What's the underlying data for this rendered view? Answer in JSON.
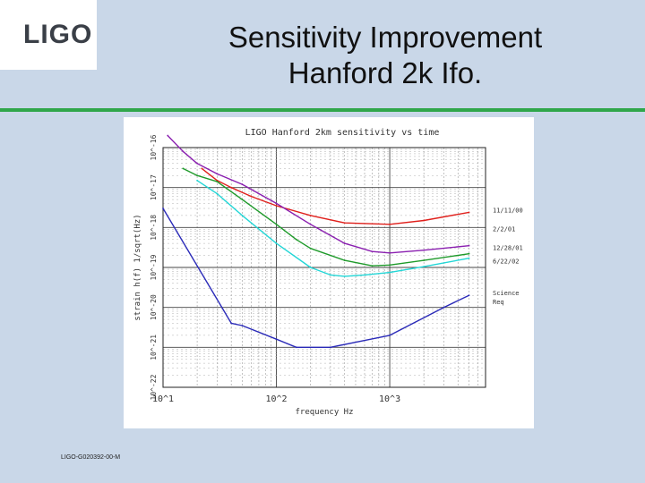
{
  "logo": {
    "text": "LIGO"
  },
  "title": {
    "line1": "Sensitivity Improvement",
    "line2": "Hanford 2k Ifo."
  },
  "footer": {
    "doc_id": "LIGO-G020392-00-M"
  },
  "colors": {
    "background": "#c9d7e8",
    "rule": "#2fa64a",
    "red": "#e0201c",
    "purple": "#8a1fb0",
    "green": "#1e9a2a",
    "cyan": "#22d6d6",
    "blue": "#2a2ab8"
  },
  "chart_data": {
    "type": "line",
    "title": "LIGO Hanford 2km sensitivity vs time",
    "xlabel": "frequency Hz",
    "ylabel": "strain h(f) 1/sqrt(Hz)",
    "xscale": "log",
    "yscale": "log",
    "xlim": [
      10,
      7000
    ],
    "ylim": [
      1e-22,
      1e-16
    ],
    "x_ticks": [
      "10^1",
      "10^2",
      "10^3"
    ],
    "y_ticks": [
      "10^-16",
      "10^-17",
      "10^-18",
      "10^-19",
      "10^-20",
      "10^-21",
      "10^-22"
    ],
    "grid": true,
    "series": [
      {
        "name": "11/11/00",
        "color": "#e0201c",
        "x": [
          22,
          30,
          40,
          60,
          100,
          200,
          400,
          1000,
          2000,
          5000
        ],
        "y": [
          3e-17,
          1.5e-17,
          1e-17,
          6e-18,
          3.5e-18,
          2e-18,
          1.3e-18,
          1.2e-18,
          1.5e-18,
          2.4e-18
        ]
      },
      {
        "name": "2/2/01",
        "color": "#8a1fb0",
        "x": [
          11,
          15,
          20,
          30,
          50,
          100,
          200,
          400,
          700,
          1000,
          2000,
          5000
        ],
        "y": [
          2e-16,
          8e-17,
          4e-17,
          2.2e-17,
          1.2e-17,
          4e-18,
          1.2e-18,
          4e-19,
          2.5e-19,
          2.3e-19,
          2.7e-19,
          3.5e-19
        ]
      },
      {
        "name": "12/28/01",
        "color": "#1e9a2a",
        "x": [
          15,
          20,
          30,
          50,
          100,
          150,
          200,
          400,
          700,
          1000,
          2000,
          5000
        ],
        "y": [
          3e-17,
          2e-17,
          1.4e-17,
          5e-18,
          1.2e-18,
          5e-19,
          3e-19,
          1.5e-19,
          1.1e-19,
          1.15e-19,
          1.5e-19,
          2.2e-19
        ]
      },
      {
        "name": "6/22/02",
        "color": "#22d6d6",
        "x": [
          20,
          30,
          50,
          100,
          200,
          300,
          400,
          600,
          1000,
          2000,
          5000
        ],
        "y": [
          1.5e-17,
          7e-18,
          2e-18,
          4e-19,
          1e-19,
          6.5e-20,
          6e-20,
          6.5e-20,
          7.5e-20,
          1.05e-19,
          1.7e-19
        ]
      },
      {
        "name": "Science Req",
        "color": "#2a2ab8",
        "x": [
          10,
          40,
          50,
          100,
          150,
          300,
          1000,
          3000,
          5000
        ],
        "y": [
          3e-18,
          4e-21,
          3.5e-21,
          1.6e-21,
          1e-21,
          1e-21,
          2e-21,
          1e-20,
          2e-20
        ]
      }
    ]
  }
}
